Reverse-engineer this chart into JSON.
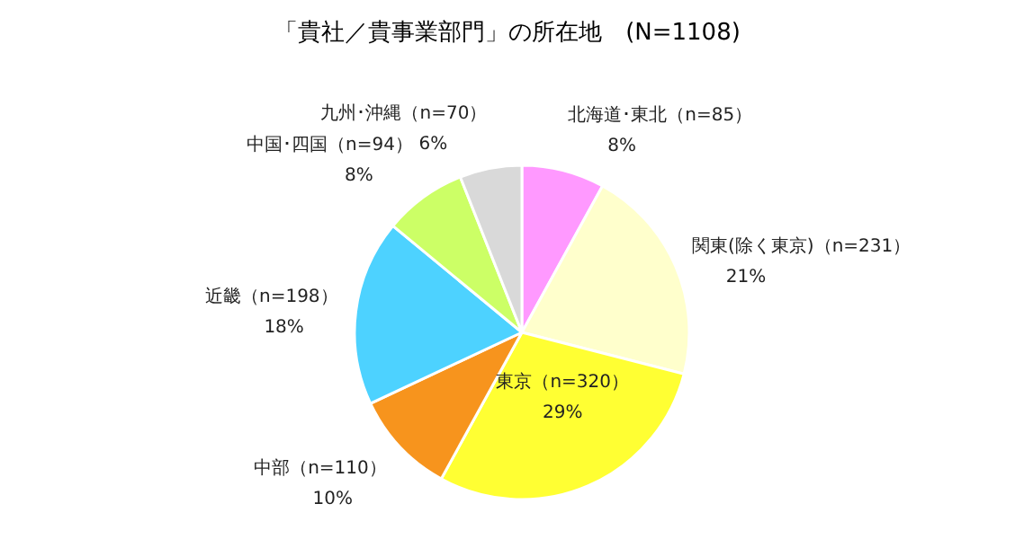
{
  "chart_data": {
    "type": "pie",
    "title": "「貴社／貴事業部門」の所在地　(N=1108)",
    "categories": [
      "北海道･東北（n=85）",
      "関東(除く東京)（n=231）",
      "東京（n=320）",
      "中部（n=110）",
      "近畿（n=198）",
      "中国･四国（n=94）",
      "九州･沖縄（n=70）"
    ],
    "values": [
      8,
      21,
      29,
      10,
      18,
      8,
      6
    ],
    "value_labels": [
      "8%",
      "21%",
      "29%",
      "10%",
      "18%",
      "8%",
      "6%"
    ],
    "colors": [
      "#ff99ff",
      "#ffffcc",
      "#ffff33",
      "#f7941d",
      "#4dd2ff",
      "#ccff66",
      "#d9d9d9"
    ]
  }
}
